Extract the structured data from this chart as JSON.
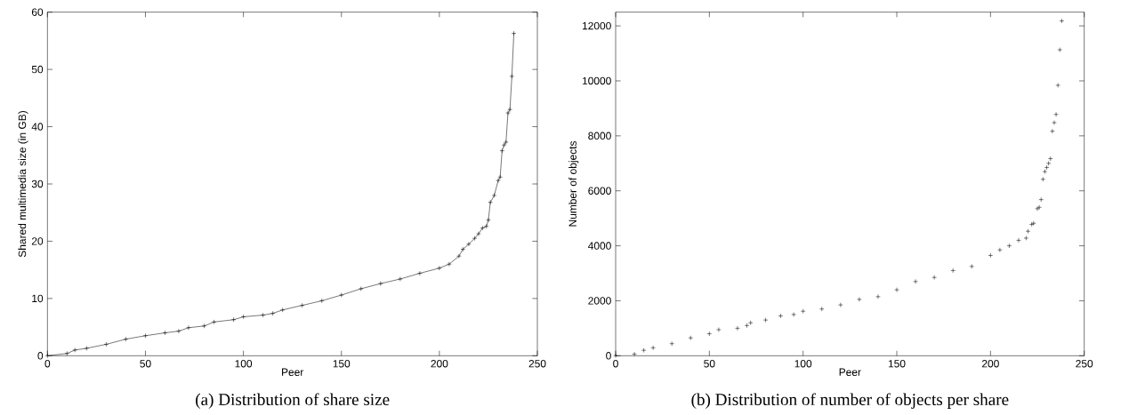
{
  "chart_data": [
    {
      "type": "line",
      "title": "(a) Distribution of share size",
      "xlabel": "Peer",
      "ylabel": "Shared multimedia size (in GB)",
      "marker": "cross",
      "color": "#000000",
      "x": [
        0,
        10,
        14,
        20,
        30,
        40,
        50,
        60,
        67,
        72,
        80,
        85,
        95,
        100,
        110,
        115,
        120,
        130,
        140,
        150,
        160,
        170,
        180,
        190,
        200,
        205,
        210,
        212,
        215,
        218,
        220,
        222,
        224,
        225,
        226,
        228,
        230,
        231,
        232,
        233,
        234,
        235,
        236,
        237,
        238
      ],
      "values": [
        0,
        0.4,
        1.0,
        1.3,
        2.0,
        2.9,
        3.5,
        4.0,
        4.3,
        4.9,
        5.2,
        5.9,
        6.3,
        6.8,
        7.1,
        7.4,
        8.0,
        8.8,
        9.6,
        10.6,
        11.7,
        12.6,
        13.4,
        14.4,
        15.3,
        16.0,
        17.4,
        18.6,
        19.5,
        20.5,
        21.3,
        22.3,
        22.6,
        23.7,
        26.8,
        28.0,
        30.6,
        31.2,
        35.8,
        36.8,
        37.3,
        42.4,
        43.0,
        48.8,
        56.3
      ],
      "xlim": [
        0,
        250
      ],
      "xticks": [
        0,
        50,
        100,
        150,
        200,
        250
      ],
      "ylim": [
        0,
        60
      ],
      "yticks": [
        0,
        10,
        20,
        30,
        40,
        50,
        60
      ]
    },
    {
      "type": "scatter",
      "title": "(b) Distribution of number of objects per share",
      "xlabel": "Peer",
      "ylabel": "Number of objects",
      "marker": "cross",
      "color": "#000000",
      "x": [
        0,
        10,
        15,
        20,
        30,
        40,
        50,
        55,
        65,
        70,
        72,
        80,
        88,
        95,
        100,
        110,
        120,
        130,
        140,
        150,
        160,
        170,
        180,
        190,
        200,
        205,
        210,
        215,
        219,
        220,
        222,
        223,
        225,
        226,
        227,
        228,
        229,
        230,
        231,
        232,
        233,
        234,
        235,
        236,
        237,
        238
      ],
      "values": [
        0,
        60,
        200,
        290,
        440,
        650,
        800,
        950,
        1000,
        1100,
        1200,
        1300,
        1450,
        1500,
        1620,
        1700,
        1850,
        2050,
        2150,
        2400,
        2700,
        2850,
        3100,
        3250,
        3650,
        3850,
        4000,
        4200,
        4280,
        4530,
        4780,
        4820,
        5350,
        5400,
        5680,
        6420,
        6700,
        6850,
        7000,
        7170,
        8170,
        8480,
        8780,
        9840,
        11130,
        12180
      ],
      "xlim": [
        0,
        250
      ],
      "xticks": [
        0,
        50,
        100,
        150,
        200,
        250
      ],
      "ylim": [
        0,
        12500
      ],
      "yticks": [
        0,
        2000,
        4000,
        6000,
        8000,
        10000,
        12000
      ]
    }
  ]
}
